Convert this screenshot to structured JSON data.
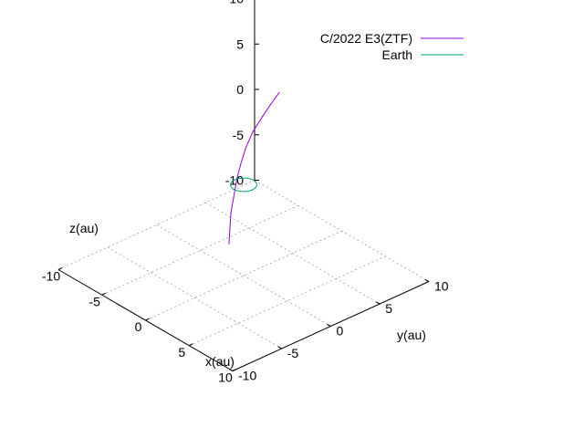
{
  "chart_data": {
    "type": "line",
    "projection": "3d",
    "xlabel": "x(au)",
    "ylabel": "y(au)",
    "zlabel": "z(au)",
    "xlim": [
      -10,
      10
    ],
    "ylim": [
      -10,
      10
    ],
    "zlim": [
      -10,
      10
    ],
    "xticks": [
      "-10",
      "-5",
      "0",
      "5",
      "10"
    ],
    "yticks": [
      "-10",
      "-5",
      "0",
      "5",
      "10"
    ],
    "zticks": [
      "-10",
      "-5",
      "0",
      "5",
      "10"
    ],
    "grid": true,
    "legend_position": "top-right",
    "series": [
      {
        "name": "C/2022 E3(ZTF)",
        "color": "#9400d3",
        "points": [
          [
            -0.4,
            4.0,
            8.0
          ],
          [
            -0.4,
            3.2,
            7.2
          ],
          [
            -0.4,
            2.3,
            6.2
          ],
          [
            -0.4,
            1.3,
            5.0
          ],
          [
            -0.3,
            0.5,
            3.7
          ],
          [
            -0.2,
            -0.1,
            2.3
          ],
          [
            -0.2,
            -0.5,
            0.8
          ],
          [
            -0.1,
            -0.9,
            -0.8
          ],
          [
            -0.1,
            -1.2,
            -2.5
          ],
          [
            0.0,
            -1.4,
            -4.2
          ],
          [
            0.0,
            -1.5,
            -5.8
          ]
        ]
      },
      {
        "name": "Earth",
        "color": "#009e73",
        "orbit": {
          "radius": 1.0,
          "z": 0
        }
      }
    ]
  }
}
